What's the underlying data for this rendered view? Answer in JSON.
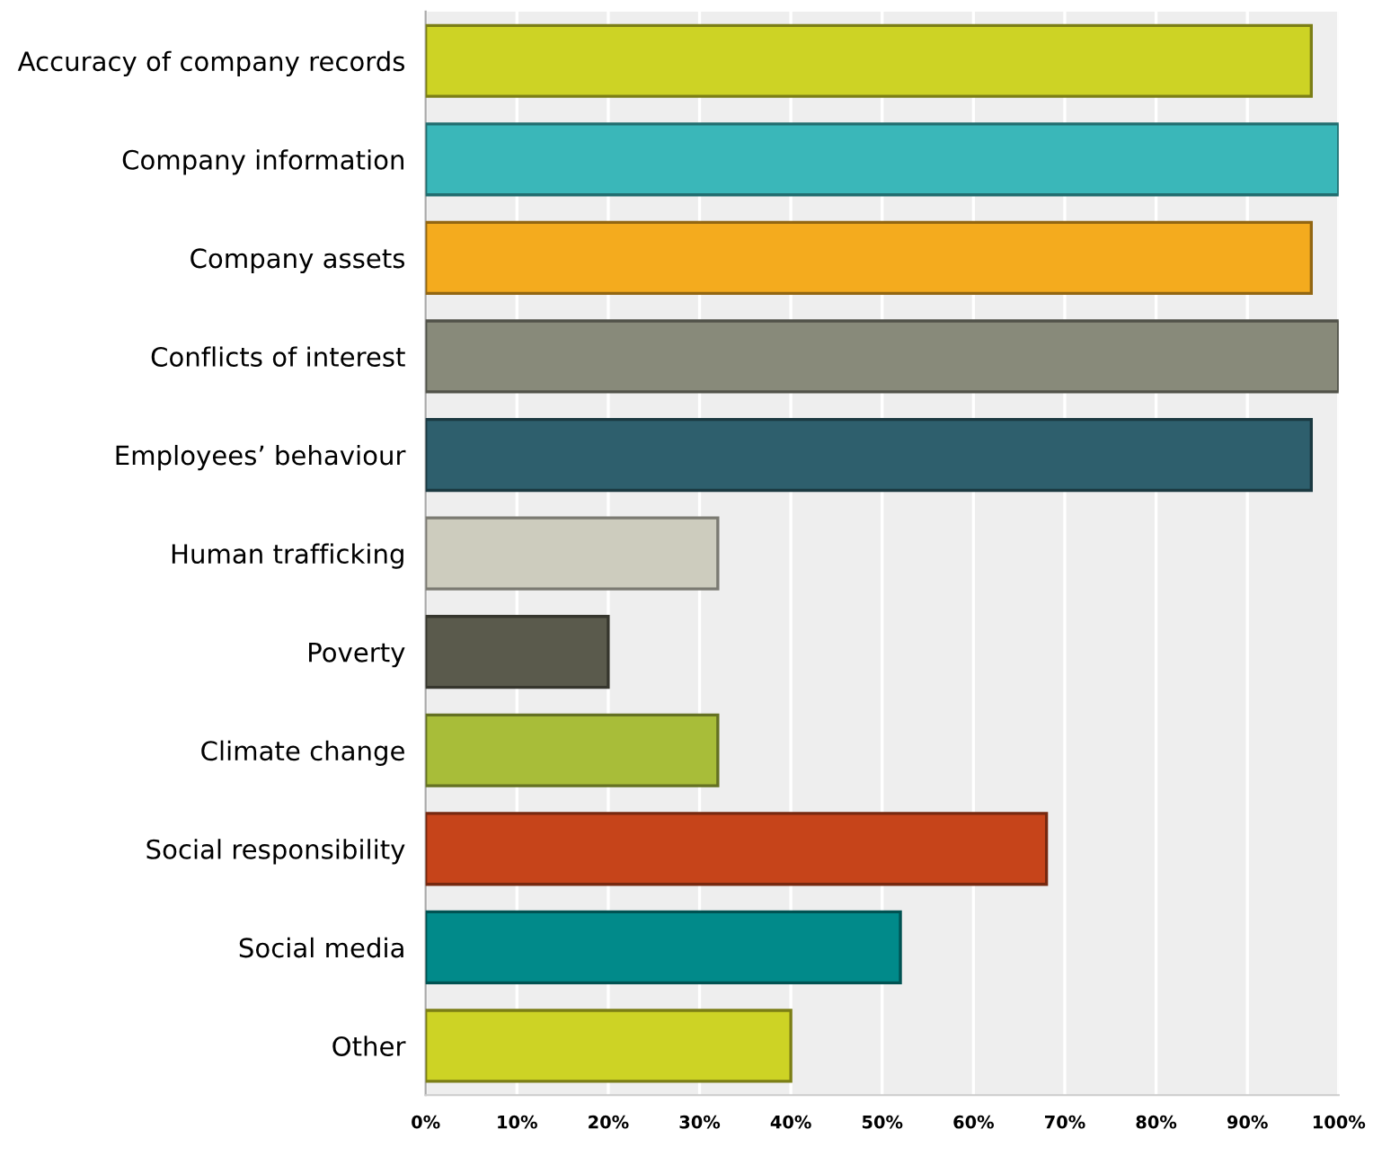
{
  "chart_data": {
    "type": "bar",
    "orientation": "horizontal",
    "categories": [
      "Accuracy of company records",
      "Company information",
      "Company assets",
      "Conflicts of interest",
      "Employees’ behaviour",
      "Human trafficking",
      "Poverty",
      "Climate change",
      "Social responsibility",
      "Social media",
      "Other"
    ],
    "values": [
      97,
      100,
      97,
      100,
      97,
      32,
      20,
      32,
      68,
      52,
      40
    ],
    "colors": [
      "#cdd325",
      "#3ab7b9",
      "#f4ab1e",
      "#888a7a",
      "#2e5f6d",
      "#cdccbe",
      "#5a5a4c",
      "#a8bd39",
      "#c6441a",
      "#018a8a",
      "#cdd325"
    ],
    "xlim": [
      0,
      100
    ],
    "xticks": [
      {
        "value": 0,
        "label": "0%"
      },
      {
        "value": 10,
        "label": "10%"
      },
      {
        "value": 20,
        "label": "20%"
      },
      {
        "value": 30,
        "label": "30%"
      },
      {
        "value": 40,
        "label": "40%"
      },
      {
        "value": 50,
        "label": "50%"
      },
      {
        "value": 60,
        "label": "60%"
      },
      {
        "value": 70,
        "label": "70%"
      },
      {
        "value": 80,
        "label": "80%"
      },
      {
        "value": 90,
        "label": "90%"
      },
      {
        "value": 100,
        "label": "100%"
      }
    ],
    "grid": "x"
  }
}
